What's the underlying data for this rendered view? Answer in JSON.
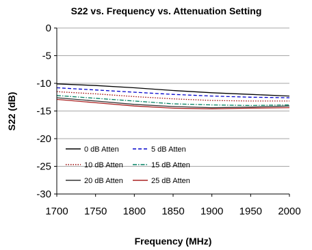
{
  "chart_data": {
    "type": "line",
    "title": "S22 vs. Frequency vs. Attenuation Setting",
    "xlabel": "Frequency (MHz)",
    "ylabel": "S22 (dB)",
    "xlim": [
      1700,
      2000
    ],
    "ylim": [
      -30,
      0
    ],
    "xticks": [
      "1700",
      "1750",
      "1800",
      "1850",
      "1900",
      "1950",
      "2000"
    ],
    "yticks": [
      "0",
      "-5",
      "-10",
      "-15",
      "-20",
      "-25",
      "-30"
    ],
    "grid": "horizontal",
    "legend": "lower-left, inside plot",
    "series": [
      {
        "name": "0 dB Atten",
        "color": "#000000",
        "style": "solid",
        "x": [
          1700,
          1750,
          1800,
          1850,
          1900,
          1950,
          2000
        ],
        "y": [
          -10.1,
          -10.4,
          -10.8,
          -11.3,
          -11.7,
          -12.0,
          -12.3
        ]
      },
      {
        "name": "5 dB Atten",
        "color": "#0000cc",
        "style": "dashed",
        "x": [
          1700,
          1750,
          1800,
          1850,
          1900,
          1950,
          2000
        ],
        "y": [
          -10.8,
          -11.2,
          -11.6,
          -12.0,
          -12.3,
          -12.5,
          -12.6
        ]
      },
      {
        "name": "10 dB Atten",
        "color": "#990000",
        "style": "dotted",
        "x": [
          1700,
          1750,
          1800,
          1850,
          1900,
          1950,
          2000
        ],
        "y": [
          -11.5,
          -11.9,
          -12.4,
          -12.8,
          -13.1,
          -13.2,
          -13.2
        ]
      },
      {
        "name": "15 dB Atten",
        "color": "#008060",
        "style": "dashdot",
        "x": [
          1700,
          1750,
          1800,
          1850,
          1900,
          1950,
          2000
        ],
        "y": [
          -12.2,
          -12.7,
          -13.2,
          -13.7,
          -13.9,
          -14.0,
          -13.9
        ]
      },
      {
        "name": "20 dB Atten",
        "color": "#333333",
        "style": "solid",
        "x": [
          1700,
          1750,
          1800,
          1850,
          1900,
          1950,
          2000
        ],
        "y": [
          -12.6,
          -13.2,
          -13.8,
          -14.2,
          -14.4,
          -14.3,
          -14.1
        ]
      },
      {
        "name": "25 dB Atten",
        "color": "#aa2222",
        "style": "solid",
        "x": [
          1700,
          1750,
          1800,
          1850,
          1900,
          1950,
          2000
        ],
        "y": [
          -12.9,
          -13.5,
          -14.1,
          -14.5,
          -14.6,
          -14.5,
          -14.4
        ]
      }
    ]
  }
}
